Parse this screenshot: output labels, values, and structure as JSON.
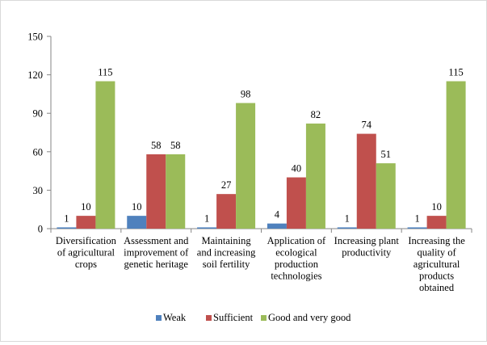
{
  "chart_data": {
    "type": "bar",
    "title": "",
    "xlabel": "",
    "ylabel": "",
    "ylim": [
      0,
      150
    ],
    "yticks": [
      0,
      30,
      60,
      90,
      120,
      150
    ],
    "grid": false,
    "legend_position": "bottom",
    "categories": [
      [
        "Diversification",
        "of agricultural",
        "crops"
      ],
      [
        "Assessment and",
        "improvement of",
        "genetic heritage"
      ],
      [
        "Maintaining",
        "and increasing",
        "soil fertility"
      ],
      [
        "Application of",
        "ecological",
        "production",
        "technologies"
      ],
      [
        "Increasing plant",
        "productivity"
      ],
      [
        "Increasing the",
        "quality of",
        "agricultural",
        "products",
        "obtained"
      ]
    ],
    "series": [
      {
        "name": "Weak",
        "color": "#4f81bd",
        "values": [
          1,
          10,
          1,
          4,
          1,
          1
        ]
      },
      {
        "name": "Sufficient",
        "color": "#c0504d",
        "values": [
          10,
          58,
          27,
          40,
          74,
          10
        ]
      },
      {
        "name": "Good and very good",
        "color": "#9bbb59",
        "values": [
          115,
          58,
          98,
          82,
          51,
          115
        ]
      }
    ]
  }
}
